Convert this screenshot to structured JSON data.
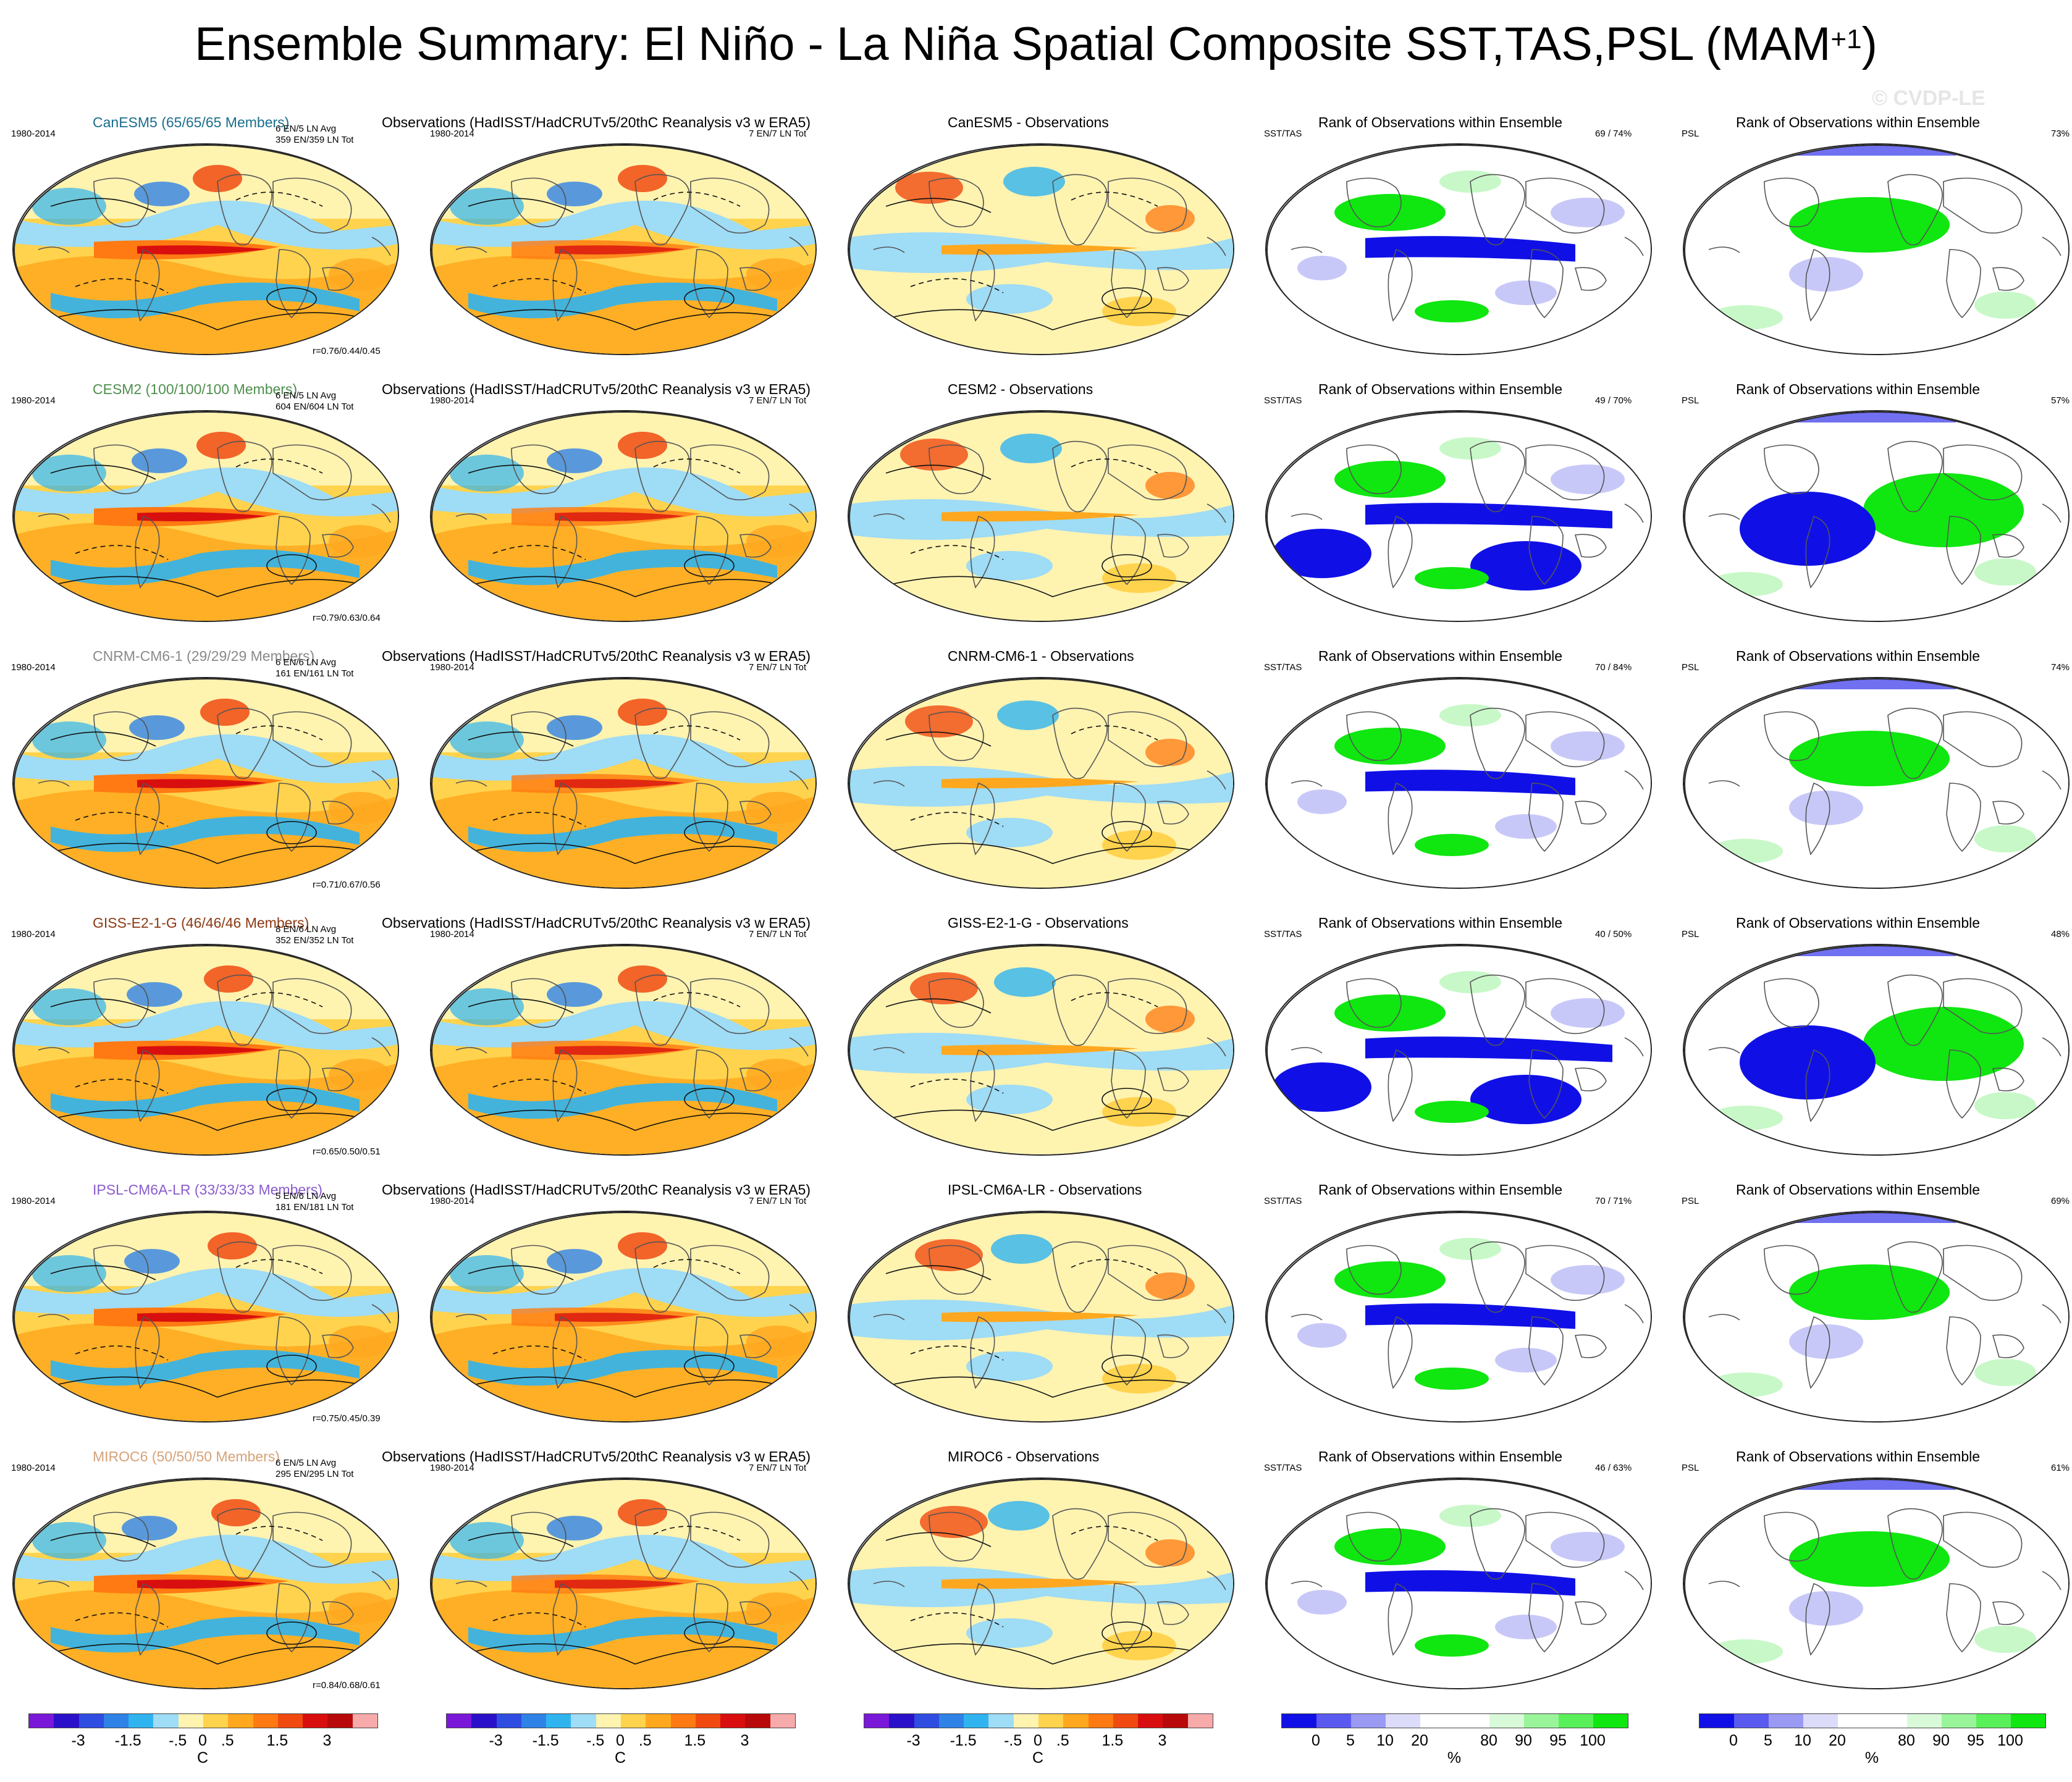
{
  "title": {
    "main": "Ensemble Summary: El Niño - La Niña Spatial Composite SST,TAS,PSL (MAM",
    "sup": "+1",
    "close": ")"
  },
  "watermark": "© CVDP-LE",
  "rows": [
    {
      "model_title": "CanESM5 (65/65/65 Members)",
      "model_color": "#1b6e8c",
      "period": "1980-2014",
      "en_info": "6 EN/5 LN Avg",
      "tot_info": "359 EN/359 LN Tot",
      "corr": "r=0.76/0.44/0.45",
      "diff_title": "CanESM5 - Observations",
      "rank_sst": "69 /  74%",
      "rank_psl": "73%"
    },
    {
      "model_title": "CESM2 (100/100/100 Members)",
      "model_color": "#4e8f4e",
      "period": "1980-2014",
      "en_info": "6 EN/5 LN Avg",
      "tot_info": "604 EN/604 LN Tot",
      "corr": "r=0.79/0.63/0.64",
      "diff_title": "CESM2 - Observations",
      "rank_sst": "49 /  70%",
      "rank_psl": "57%"
    },
    {
      "model_title": "CNRM-CM6-1 (29/29/29 Members)",
      "model_color": "#8a8a8a",
      "period": "1980-2014",
      "en_info": "6 EN/6 LN Avg",
      "tot_info": "161 EN/161 LN Tot",
      "corr": "r=0.71/0.67/0.56",
      "diff_title": "CNRM-CM6-1 - Observations",
      "rank_sst": "70 /  84%",
      "rank_psl": "74%"
    },
    {
      "model_title": "GISS-E2-1-G (46/46/46 Members)",
      "model_color": "#8c3a12",
      "period": "1980-2014",
      "en_info": "8 EN/6 LN Avg",
      "tot_info": "352 EN/352 LN Tot",
      "corr": "r=0.65/0.50/0.51",
      "diff_title": "GISS-E2-1-G - Observations",
      "rank_sst": "40 /  50%",
      "rank_psl": "48%"
    },
    {
      "model_title": "IPSL-CM6A-LR (33/33/33 Members)",
      "model_color": "#8a5ccc",
      "period": "1980-2014",
      "en_info": "5 EN/6 LN Avg",
      "tot_info": "181 EN/181 LN Tot",
      "corr": "r=0.75/0.45/0.39",
      "diff_title": "IPSL-CM6A-LR - Observations",
      "rank_sst": "70 /  71%",
      "rank_psl": "69%"
    },
    {
      "model_title": "MIROC6 (50/50/50 Members)",
      "model_color": "#d6a277",
      "period": "1980-2014",
      "en_info": "6 EN/5 LN Avg",
      "tot_info": "295 EN/295 LN Tot",
      "corr": "r=0.84/0.68/0.61",
      "diff_title": "MIROC6 - Observations",
      "rank_sst": "46 /  63%",
      "rank_psl": "61%"
    }
  ],
  "obs": {
    "title": "Observations (HadISST/HadCRUTv5/20thC Reanalysis v3 w ERA5)",
    "period": "1980-2014",
    "info": "7 EN/7 LN Tot"
  },
  "rank": {
    "title": "Rank of Observations within Ensemble",
    "sst_label": "SST/TAS",
    "psl_label": "PSL"
  },
  "colorbar_temp": {
    "colors": [
      "#7a18d9",
      "#2a10c9",
      "#2f4de0",
      "#2f82e6",
      "#2fb4f0",
      "#9fdcf5",
      "#fff3b0",
      "#ffd34d",
      "#ffa81f",
      "#ff7a12",
      "#f04a10",
      "#d90f0f",
      "#b80a0a",
      "#f7aaaa"
    ],
    "labels": [
      "-3",
      "-1.5",
      "-.5",
      "0",
      ".5",
      "1.5",
      "3"
    ],
    "unit": "C"
  },
  "colorbar_rank": {
    "colors": [
      "#1010e6",
      "#5a5af0",
      "#9a9af5",
      "#dcdcfa",
      "#ffffff",
      "#ffffff",
      "#d9fad9",
      "#9af59a",
      "#5af05a",
      "#10e610"
    ],
    "labels": [
      "0",
      "5",
      "10",
      "20",
      "80",
      "90",
      "95",
      "100"
    ],
    "unit": "%"
  }
}
